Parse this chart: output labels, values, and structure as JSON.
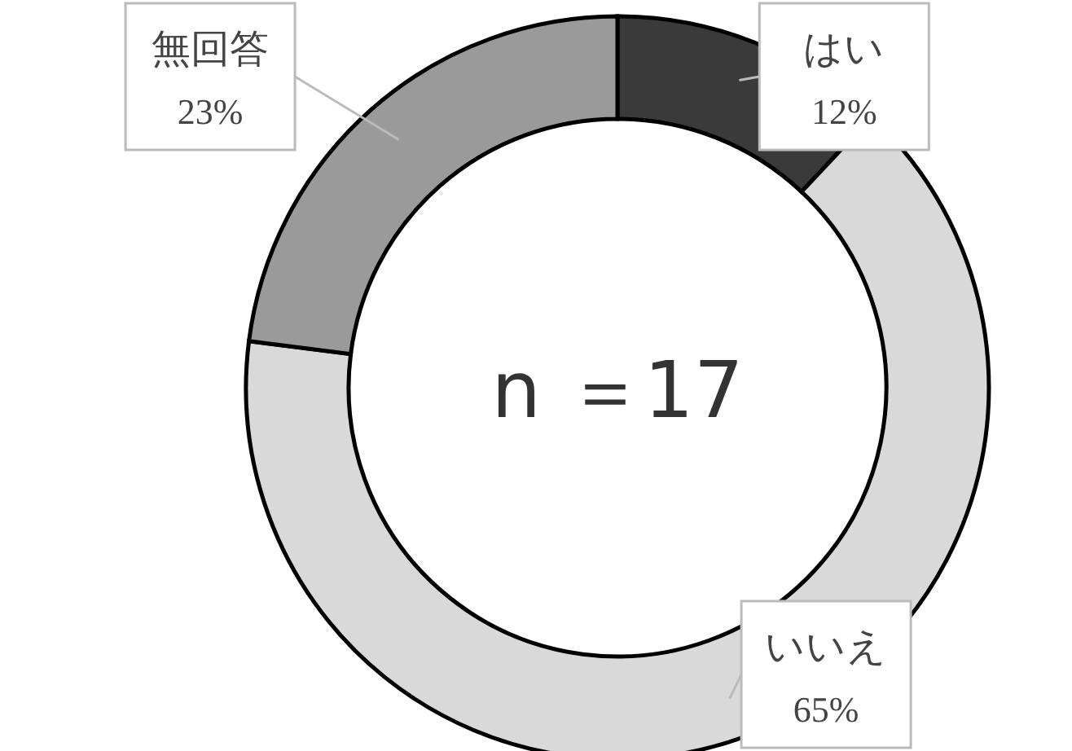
{
  "chart_data": {
    "type": "donut",
    "categories": [
      "はい",
      "いいえ",
      "無回答"
    ],
    "values": [
      12,
      65,
      23
    ],
    "colors": [
      "#3a3a3a",
      "#d9d9d9",
      "#9a9a9a"
    ],
    "value_labels": [
      "12%",
      "65%",
      "23%"
    ],
    "annotations": [
      "n ＝17"
    ]
  }
}
